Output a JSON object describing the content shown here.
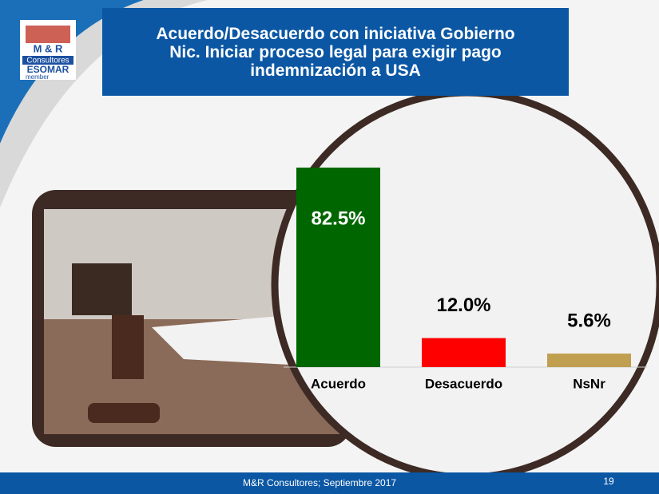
{
  "chart_data": {
    "type": "bar",
    "title": "Acuerdo/Desacuerdo con iniciativa Gobierno Nic. Iniciar proceso legal para exigir pago indemnización a USA",
    "categories": [
      "Acuerdo",
      "Desacuerdo",
      "NsNr"
    ],
    "values": [
      82.5,
      12.0,
      5.6
    ],
    "value_labels": [
      "82.5%",
      "12.0%",
      "5.6%"
    ],
    "colors": [
      "#006600",
      "#ff0000",
      "#c0a050"
    ]
  },
  "logo": {
    "brand": "M & R",
    "name": "Consultores",
    "association": "ESOMAR",
    "membership": "member"
  },
  "footer": {
    "source": "M&R Consultores; Septiembre 2017",
    "page": "19"
  }
}
